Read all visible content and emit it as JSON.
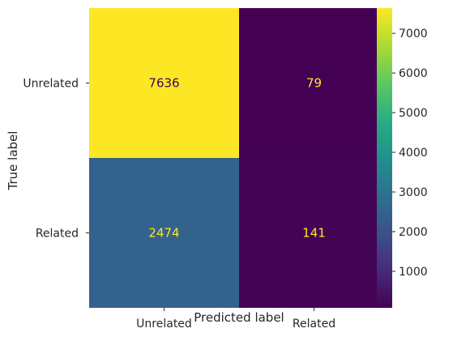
{
  "chart_data": {
    "type": "heatmap",
    "title": "",
    "xlabel": "Predicted label",
    "ylabel": "True label",
    "x_categories": [
      "Unrelated",
      "Related"
    ],
    "y_categories": [
      "Unrelated",
      "Related"
    ],
    "values": [
      [
        7636,
        79
      ],
      [
        2474,
        141
      ]
    ],
    "colormap": "viridis",
    "colorbar": {
      "vmin": 79,
      "vmax": 7636,
      "ticks": [
        1000,
        2000,
        3000,
        4000,
        5000,
        6000,
        7000
      ],
      "tick_labels": [
        "1000",
        "2000",
        "3000",
        "4000",
        "5000",
        "6000",
        "7000"
      ]
    },
    "grid": false,
    "text_colors": {
      "on_light": "#440154",
      "on_dark": "#fde725"
    }
  }
}
